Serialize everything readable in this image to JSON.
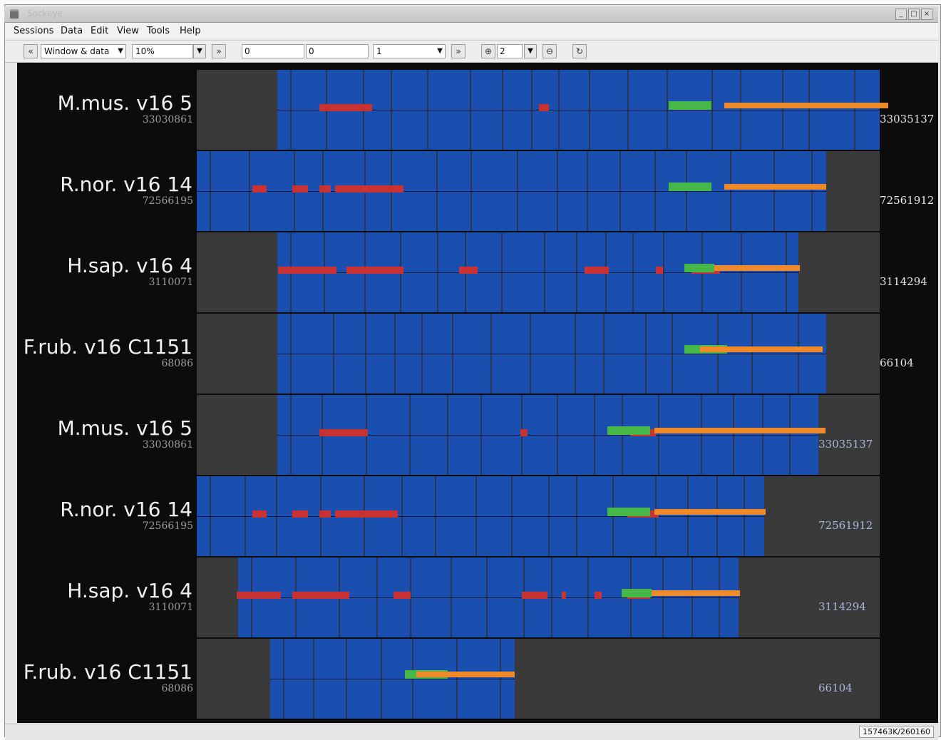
{
  "window": {
    "title": "Sockeye",
    "controls": {
      "minimize": "_",
      "maximize": "□",
      "close": "×"
    }
  },
  "menu": [
    "Sessions",
    "Data",
    "Edit",
    "View",
    "Tools",
    "Help"
  ],
  "toolbar": {
    "back_icon": "double-chevron-left",
    "view_mode": "Window & data",
    "zoom": "10%",
    "forward_icon": "double-chevron-right",
    "field_a": "0",
    "field_b": "0",
    "field_c": "1",
    "spin_value": "2"
  },
  "tracks": [
    {
      "species": "M.mus. v16 5",
      "start": "33030861",
      "end": "33035137"
    },
    {
      "species": "R.nor. v16 14",
      "start": "72566195",
      "end": "72561912"
    },
    {
      "species": "H.sap. v16 4",
      "start": "3110071",
      "end": "3114294"
    },
    {
      "species": "F.rub. v16 C1151",
      "start": "68086",
      "end": "66104"
    },
    {
      "species": "M.mus. v16 5",
      "start": "33030861",
      "end": "33035137"
    },
    {
      "species": "R.nor. v16 14",
      "start": "72566195",
      "end": "72561912"
    },
    {
      "species": "H.sap. v16 4",
      "start": "3110071",
      "end": "3114294"
    },
    {
      "species": "F.rub. v16 C1151",
      "start": "68086",
      "end": "66104"
    }
  ],
  "status": {
    "memory": "157463K/260160"
  },
  "colors": {
    "background": "#0c0c0c",
    "empty_region": "#3a3a3a",
    "alignment_block": "#1a4fb0",
    "gap_line": "#2b3550",
    "repeat_feature": "#c83232",
    "utr_feature": "#46b84a",
    "exon_feature": "#ee8a2a"
  }
}
